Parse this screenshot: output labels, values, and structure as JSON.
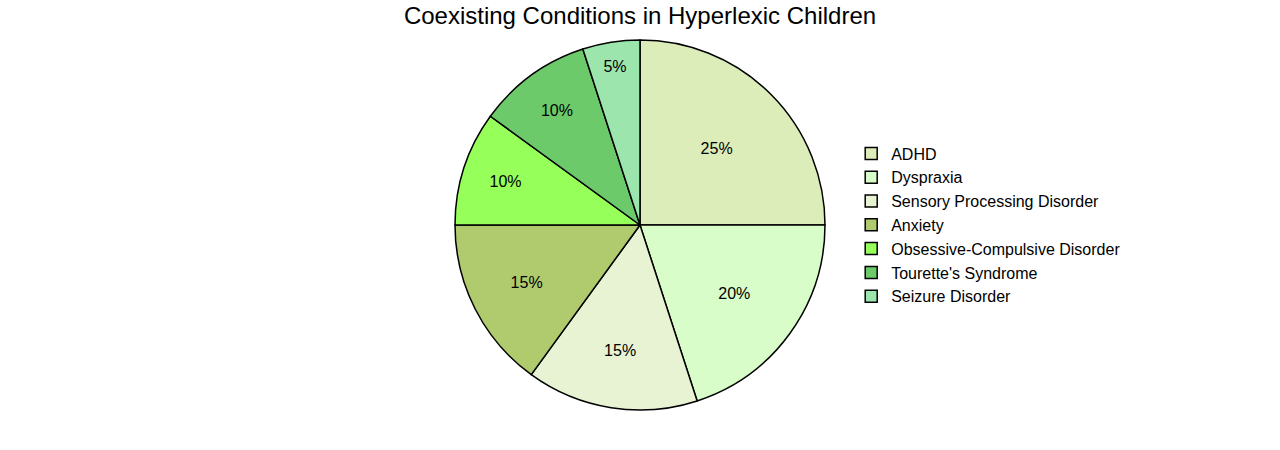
{
  "chart_data": {
    "type": "pie",
    "title": "Coexisting Conditions in Hyperlexic Children",
    "categories": [
      "ADHD",
      "Dyspraxia",
      "Sensory Processing Disorder",
      "Anxiety",
      "Obsessive-Compulsive Disorder",
      "Tourette's Syndrome",
      "Seizure Disorder"
    ],
    "values": [
      25,
      20,
      15,
      15,
      10,
      10,
      5
    ],
    "value_labels": [
      "25%",
      "20%",
      "15%",
      "15%",
      "10%",
      "10%",
      "5%"
    ],
    "colors": [
      "#dcedb9",
      "#d9fdc8",
      "#e8f3d3",
      "#b0cb6e",
      "#96ff5a",
      "#6dca6a",
      "#9ce6ae"
    ],
    "data_labels": true,
    "legend": "right"
  }
}
